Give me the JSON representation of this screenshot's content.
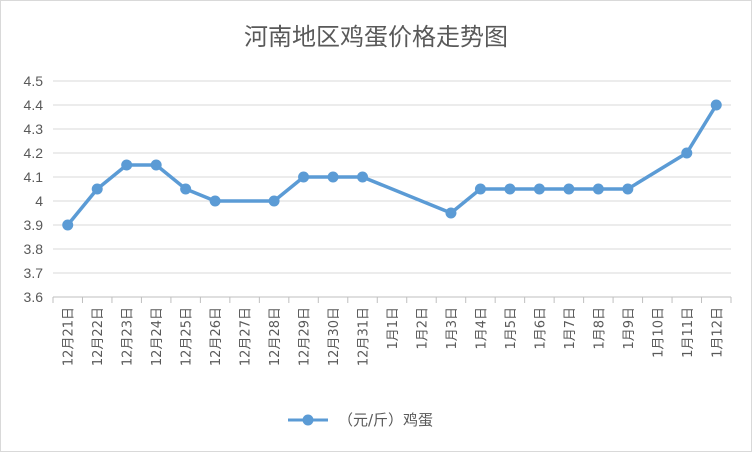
{
  "chart_data": {
    "type": "line",
    "title": "河南地区鸡蛋价格走势图",
    "categories": [
      "12月21日",
      "12月22日",
      "12月23日",
      "12月24日",
      "12月25日",
      "12月26日",
      "12月27日",
      "12月28日",
      "12月29日",
      "12月30日",
      "12月31日",
      "1月1日",
      "1月2日",
      "1月3日",
      "1月4日",
      "1月5日",
      "1月6日",
      "1月7日",
      "1月8日",
      "1月9日",
      "1月10日",
      "1月11日",
      "1月12日"
    ],
    "series": [
      {
        "name": "（元/斤）鸡蛋",
        "color": "#5b9bd5",
        "values": [
          3.9,
          4.05,
          4.15,
          4.15,
          4.05,
          4.0,
          null,
          4.0,
          4.1,
          4.1,
          4.1,
          null,
          null,
          3.95,
          4.05,
          4.05,
          4.05,
          4.05,
          4.05,
          4.05,
          null,
          4.2,
          4.4
        ]
      }
    ],
    "yticks": [
      "3.6",
      "3.7",
      "3.8",
      "3.9",
      "4",
      "4.1",
      "4.2",
      "4.3",
      "4.4",
      "4.5"
    ],
    "ylim": [
      3.6,
      4.5
    ],
    "grid": true,
    "legend_position": "bottom"
  }
}
